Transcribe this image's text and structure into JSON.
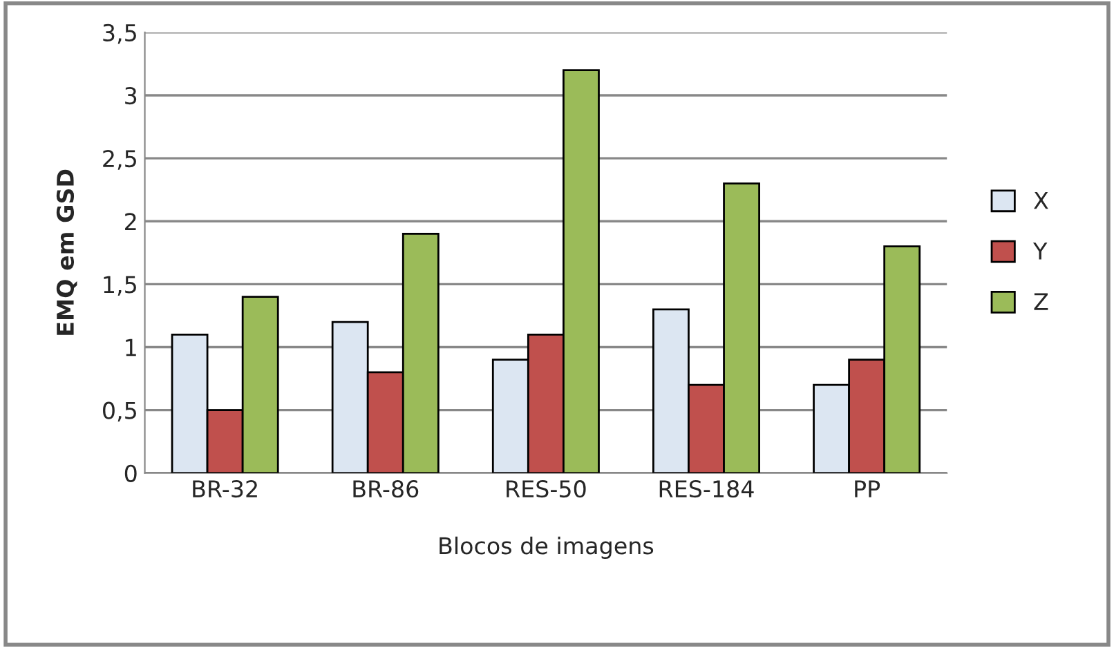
{
  "chart_data": {
    "type": "bar",
    "xlabel": "Blocos de imagens",
    "ylabel": "EMQ em GSD",
    "categories": [
      "BR-32",
      "BR-86",
      "RES-50",
      "RES-184",
      "PP"
    ],
    "series": [
      {
        "name": "X",
        "color": "#dce6f2",
        "values": [
          1.1,
          1.2,
          0.9,
          1.3,
          0.7
        ]
      },
      {
        "name": "Y",
        "color": "#c0504d",
        "values": [
          0.5,
          0.8,
          1.1,
          0.7,
          0.9
        ]
      },
      {
        "name": "Z",
        "color": "#9bbb59",
        "values": [
          1.4,
          1.9,
          3.2,
          2.3,
          1.8
        ]
      }
    ],
    "ylim": [
      0,
      3.5
    ],
    "yticks": [
      0,
      {
        "value": 0.5,
        "label": "0,5"
      },
      1,
      {
        "value": 1.5,
        "label": "1,5"
      },
      2,
      {
        "value": 2.5,
        "label": "2,5"
      },
      3,
      {
        "value": 3.5,
        "label": "3,5"
      }
    ],
    "grid": "y",
    "legend": "right"
  }
}
